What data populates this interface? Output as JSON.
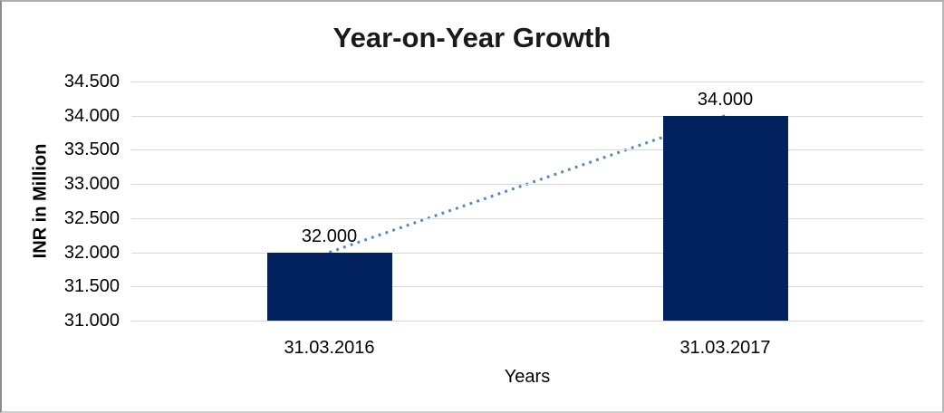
{
  "chart_data": {
    "type": "bar",
    "title": "Year-on-Year Growth",
    "xlabel": "Years",
    "ylabel": "INR in Million",
    "categories": [
      "31.03.2016",
      "31.03.2017"
    ],
    "values": [
      32000,
      34000
    ],
    "value_labels": [
      "32.000",
      "34.000"
    ],
    "series": [
      {
        "name": "bars",
        "type": "bar",
        "values": [
          32000,
          34000
        ]
      },
      {
        "name": "trendline",
        "type": "dotted-line",
        "values": [
          32000,
          34000
        ]
      }
    ],
    "ylim": [
      31000,
      34500
    ],
    "y_tick_step": 500,
    "y_tick_labels": [
      "31.000",
      "31.500",
      "32.000",
      "32.500",
      "33.000",
      "33.500",
      "34.000",
      "34.500"
    ],
    "grid": true,
    "legend": "none",
    "colors": {
      "bar": "#02215f",
      "trendline": "#4f86c8",
      "gridline": "#d9d9d9",
      "text": "#000000",
      "title": "#1a1a1a",
      "background": "#ffffff"
    }
  }
}
